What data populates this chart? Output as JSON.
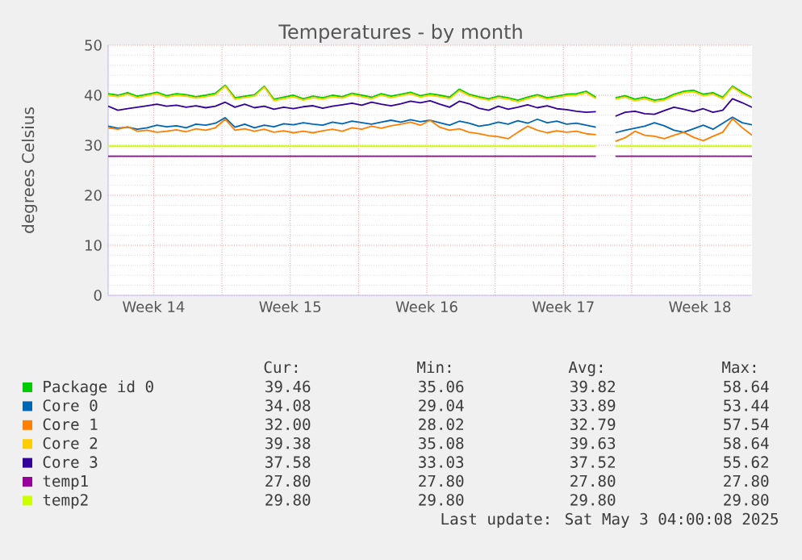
{
  "chart_data": {
    "type": "line",
    "title": "Temperatures - by month",
    "ylabel": "degrees Celsius",
    "xlim": [
      "2025-03-31T04:00",
      "2025-05-03T04:00"
    ],
    "xticks": [
      {
        "value": "2025-04-02T12:00",
        "label": "Week 14"
      },
      {
        "value": "2025-04-06T00:00",
        "label": null
      },
      {
        "value": "2025-04-09T12:00",
        "label": "Week 15"
      },
      {
        "value": "2025-04-13T00:00",
        "label": null
      },
      {
        "value": "2025-04-16T12:00",
        "label": "Week 16"
      },
      {
        "value": "2025-04-20T00:00",
        "label": null
      },
      {
        "value": "2025-04-23T12:00",
        "label": "Week 17"
      },
      {
        "value": "2025-04-27T00:00",
        "label": null
      },
      {
        "value": "2025-04-30T12:00",
        "label": "Week 18"
      }
    ],
    "ylim": [
      0,
      50
    ],
    "yticks": [
      0,
      10,
      20,
      30,
      40,
      50
    ],
    "grid": true,
    "legend": "bottom",
    "marker": "none",
    "line_style": "solid",
    "x": [
      "2025-03-31T04:00",
      "2025-03-31T16:00",
      "2025-04-01T04:00",
      "2025-04-01T16:00",
      "2025-04-02T04:00",
      "2025-04-02T16:00",
      "2025-04-03T04:00",
      "2025-04-03T16:00",
      "2025-04-04T04:00",
      "2025-04-04T16:00",
      "2025-04-05T04:00",
      "2025-04-05T16:00",
      "2025-04-06T04:00",
      "2025-04-06T16:00",
      "2025-04-07T04:00",
      "2025-04-07T16:00",
      "2025-04-08T04:00",
      "2025-04-08T16:00",
      "2025-04-09T04:00",
      "2025-04-09T16:00",
      "2025-04-10T04:00",
      "2025-04-10T16:00",
      "2025-04-11T04:00",
      "2025-04-11T16:00",
      "2025-04-12T04:00",
      "2025-04-12T16:00",
      "2025-04-13T04:00",
      "2025-04-13T16:00",
      "2025-04-14T04:00",
      "2025-04-14T16:00",
      "2025-04-15T04:00",
      "2025-04-15T16:00",
      "2025-04-16T04:00",
      "2025-04-16T16:00",
      "2025-04-17T04:00",
      "2025-04-17T16:00",
      "2025-04-18T04:00",
      "2025-04-18T16:00",
      "2025-04-19T04:00",
      "2025-04-19T16:00",
      "2025-04-20T04:00",
      "2025-04-20T16:00",
      "2025-04-21T04:00",
      "2025-04-21T16:00",
      "2025-04-22T04:00",
      "2025-04-22T16:00",
      "2025-04-23T04:00",
      "2025-04-23T16:00",
      "2025-04-24T04:00",
      "2025-04-24T16:00",
      "2025-04-25T04:00",
      "2025-04-25T16:00",
      "2025-04-26T04:00",
      "2025-04-26T16:00",
      "2025-04-27T04:00",
      "2025-04-27T16:00",
      "2025-04-28T04:00",
      "2025-04-28T16:00",
      "2025-04-29T04:00",
      "2025-04-29T16:00",
      "2025-04-30T04:00",
      "2025-04-30T16:00",
      "2025-05-01T04:00",
      "2025-05-01T16:00",
      "2025-05-02T04:00",
      "2025-05-02T16:00",
      "2025-05-03T04:00"
    ],
    "series": [
      {
        "name": "Package id 0",
        "color": "#00cc00",
        "values": [
          40.3,
          40.0,
          40.5,
          39.8,
          40.2,
          40.6,
          39.9,
          40.3,
          40.1,
          39.7,
          40.0,
          40.4,
          42.0,
          39.5,
          39.8,
          40.1,
          41.8,
          39.2,
          39.6,
          40.0,
          39.3,
          39.8,
          39.5,
          40.0,
          39.7,
          40.4,
          40.0,
          39.6,
          40.3,
          39.8,
          40.2,
          40.6,
          39.9,
          40.3,
          40.0,
          39.6,
          41.2,
          40.2,
          39.7,
          39.3,
          39.8,
          39.5,
          39.0,
          39.6,
          40.1,
          39.5,
          39.8,
          40.2,
          40.3,
          40.8,
          39.6,
          null,
          39.5,
          39.9,
          39.2,
          39.6,
          39.0,
          39.3,
          40.2,
          40.8,
          41.0,
          40.2,
          40.5,
          39.6,
          41.8,
          40.6,
          39.5
        ]
      },
      {
        "name": "Core 0",
        "color": "#0066b3",
        "values": [
          33.8,
          33.4,
          33.6,
          33.2,
          33.5,
          34.0,
          33.7,
          33.9,
          33.5,
          34.2,
          34.0,
          34.4,
          35.5,
          33.6,
          34.2,
          33.5,
          34.0,
          33.7,
          34.3,
          34.1,
          34.5,
          34.2,
          34.0,
          34.6,
          34.3,
          34.8,
          34.5,
          34.2,
          34.6,
          35.0,
          34.6,
          35.1,
          34.7,
          35.0,
          34.5,
          34.0,
          34.8,
          34.4,
          33.8,
          34.1,
          34.6,
          34.2,
          34.9,
          34.4,
          35.2,
          34.5,
          34.8,
          34.2,
          34.4,
          34.0,
          33.6,
          null,
          32.5,
          33.0,
          33.4,
          33.8,
          34.5,
          33.9,
          33.0,
          32.6,
          33.3,
          34.0,
          33.2,
          34.4,
          35.6,
          34.5,
          34.1
        ]
      },
      {
        "name": "Core 1",
        "color": "#ff8000",
        "values": [
          33.5,
          33.2,
          33.7,
          32.8,
          33.0,
          32.6,
          32.8,
          33.1,
          32.7,
          33.3,
          33.0,
          33.5,
          35.2,
          33.0,
          33.3,
          32.8,
          33.2,
          32.6,
          32.9,
          32.5,
          32.8,
          32.5,
          32.9,
          33.2,
          32.8,
          33.5,
          33.2,
          33.8,
          33.4,
          33.9,
          34.2,
          34.6,
          34.0,
          35.0,
          33.6,
          33.0,
          33.3,
          32.6,
          32.3,
          31.9,
          31.7,
          31.3,
          32.6,
          33.8,
          33.0,
          32.5,
          32.9,
          32.6,
          32.8,
          32.3,
          32.1,
          null,
          30.8,
          31.5,
          32.8,
          32.0,
          31.8,
          31.3,
          32.0,
          32.6,
          31.6,
          30.9,
          31.8,
          32.6,
          35.3,
          33.5,
          32.0
        ]
      },
      {
        "name": "Core 2",
        "color": "#ffcc00",
        "values": [
          40.0,
          39.7,
          40.2,
          39.5,
          39.9,
          40.3,
          39.6,
          40.0,
          39.8,
          39.4,
          39.7,
          40.1,
          41.8,
          39.2,
          39.5,
          39.8,
          41.6,
          38.9,
          39.3,
          39.7,
          39.0,
          39.5,
          39.2,
          39.7,
          39.4,
          40.1,
          39.7,
          39.3,
          40.0,
          39.5,
          39.9,
          40.3,
          39.6,
          40.0,
          39.7,
          39.3,
          40.9,
          39.9,
          39.4,
          39.0,
          39.5,
          39.2,
          38.7,
          39.3,
          39.8,
          39.2,
          39.5,
          39.9,
          40.0,
          40.5,
          39.3,
          null,
          39.2,
          39.6,
          38.9,
          39.3,
          38.7,
          39.0,
          39.9,
          40.5,
          40.7,
          39.9,
          40.2,
          39.3,
          41.6,
          40.3,
          39.4
        ]
      },
      {
        "name": "Core 3",
        "color": "#330099",
        "values": [
          37.8,
          37.0,
          37.3,
          37.6,
          37.9,
          38.2,
          37.8,
          38.0,
          37.6,
          37.9,
          37.5,
          37.8,
          38.6,
          37.6,
          38.2,
          37.5,
          37.8,
          37.2,
          37.6,
          37.3,
          37.7,
          37.9,
          37.4,
          37.8,
          38.1,
          38.4,
          38.0,
          38.6,
          38.2,
          37.9,
          38.3,
          38.8,
          38.5,
          38.9,
          38.2,
          37.6,
          38.8,
          38.3,
          37.4,
          37.0,
          37.8,
          37.2,
          37.6,
          38.1,
          37.5,
          37.9,
          37.3,
          37.1,
          36.8,
          36.6,
          36.7,
          null,
          35.8,
          36.6,
          36.8,
          36.3,
          36.2,
          36.9,
          37.6,
          37.2,
          36.7,
          37.3,
          36.6,
          37.0,
          39.3,
          38.5,
          37.6
        ]
      },
      {
        "name": "temp1",
        "color": "#990099",
        "x": [
          "2025-03-31T04:00",
          "2025-04-25T04:00",
          "2025-04-25T16:00",
          "2025-04-26T04:00",
          "2025-05-03T04:00"
        ],
        "values": [
          27.8,
          27.8,
          null,
          27.8,
          27.8
        ]
      },
      {
        "name": "temp2",
        "color": "#ccff00",
        "x": [
          "2025-03-31T04:00",
          "2025-04-25T04:00",
          "2025-04-25T16:00",
          "2025-04-26T04:00",
          "2025-05-03T04:00"
        ],
        "values": [
          29.8,
          29.8,
          null,
          29.8,
          29.8
        ]
      }
    ],
    "annotations": [
      "Cur:",
      "Min:",
      "Avg:",
      "Max:",
      "39.46",
      "35.06",
      "39.82",
      "58.64",
      "34.08",
      "29.04",
      "33.89",
      "53.44",
      "32.00",
      "28.02",
      "32.79",
      "57.54",
      "39.38",
      "35.08",
      "39.63",
      "58.64",
      "37.58",
      "33.03",
      "37.52",
      "55.62",
      "27.80",
      "27.80",
      "27.80",
      "27.80",
      "29.80",
      "29.80",
      "29.80",
      "29.80",
      "Last update: Sat May  3 04:00:08 2025"
    ]
  }
}
